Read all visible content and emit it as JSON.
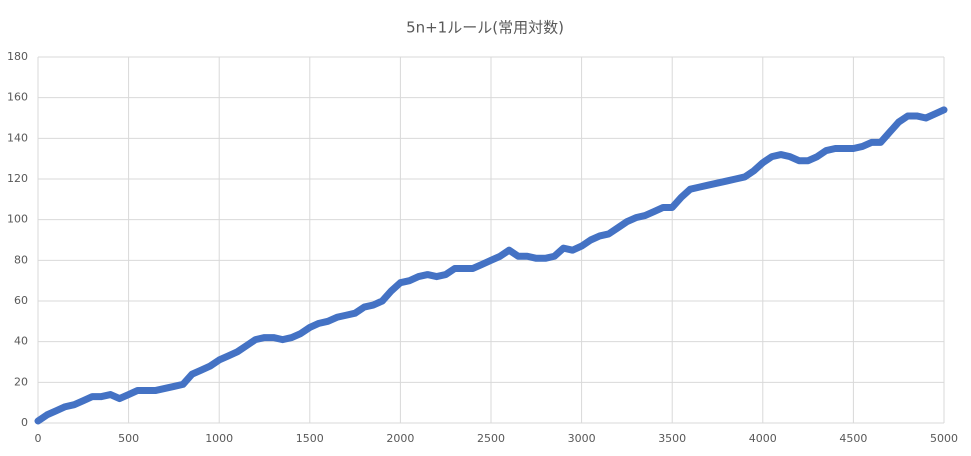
{
  "chart_data": {
    "type": "line",
    "title": "5n+1ルール(常用対数)",
    "x": [
      0,
      50,
      100,
      150,
      200,
      250,
      300,
      350,
      400,
      450,
      500,
      550,
      600,
      650,
      700,
      750,
      800,
      850,
      900,
      950,
      1000,
      1050,
      1100,
      1150,
      1200,
      1250,
      1300,
      1350,
      1400,
      1450,
      1500,
      1550,
      1600,
      1650,
      1700,
      1750,
      1800,
      1850,
      1900,
      1950,
      2000,
      2050,
      2100,
      2150,
      2200,
      2250,
      2300,
      2350,
      2400,
      2450,
      2500,
      2550,
      2600,
      2650,
      2700,
      2750,
      2800,
      2850,
      2900,
      2950,
      3000,
      3050,
      3100,
      3150,
      3200,
      3250,
      3300,
      3350,
      3400,
      3450,
      3500,
      3550,
      3600,
      3650,
      3700,
      3750,
      3800,
      3850,
      3900,
      3950,
      4000,
      4050,
      4100,
      4150,
      4200,
      4250,
      4300,
      4350,
      4400,
      4450,
      4500,
      4550,
      4600,
      4650,
      4700,
      4750,
      4800,
      4850,
      4900,
      4950,
      5000
    ],
    "series": [
      {
        "color": "#4472c4",
        "values": [
          1,
          4,
          6,
          8,
          9,
          11,
          13,
          13,
          14,
          12,
          14,
          16,
          16,
          16,
          17,
          18,
          19,
          24,
          26,
          28,
          31,
          33,
          35,
          38,
          41,
          42,
          42,
          41,
          42,
          44,
          47,
          49,
          50,
          52,
          53,
          54,
          57,
          58,
          60,
          65,
          69,
          70,
          72,
          73,
          72,
          73,
          76,
          76,
          76,
          78,
          80,
          82,
          85,
          82,
          82,
          81,
          81,
          82,
          86,
          85,
          87,
          90,
          92,
          93,
          96,
          99,
          101,
          102,
          104,
          106,
          106,
          111,
          115,
          116,
          117,
          118,
          119,
          120,
          121,
          124,
          128,
          131,
          132,
          131,
          129,
          129,
          131,
          134,
          135,
          135,
          135,
          136,
          138,
          138,
          143,
          148,
          151,
          151,
          150,
          152,
          154
        ]
      }
    ],
    "xlim": [
      0,
      5000
    ],
    "xticks": [
      0,
      500,
      1000,
      1500,
      2000,
      2500,
      3000,
      3500,
      4000,
      4500,
      5000
    ],
    "ylim": [
      0,
      180
    ],
    "yticks": [
      0,
      20,
      40,
      60,
      80,
      100,
      120,
      140,
      160,
      180
    ],
    "grid": true
  }
}
